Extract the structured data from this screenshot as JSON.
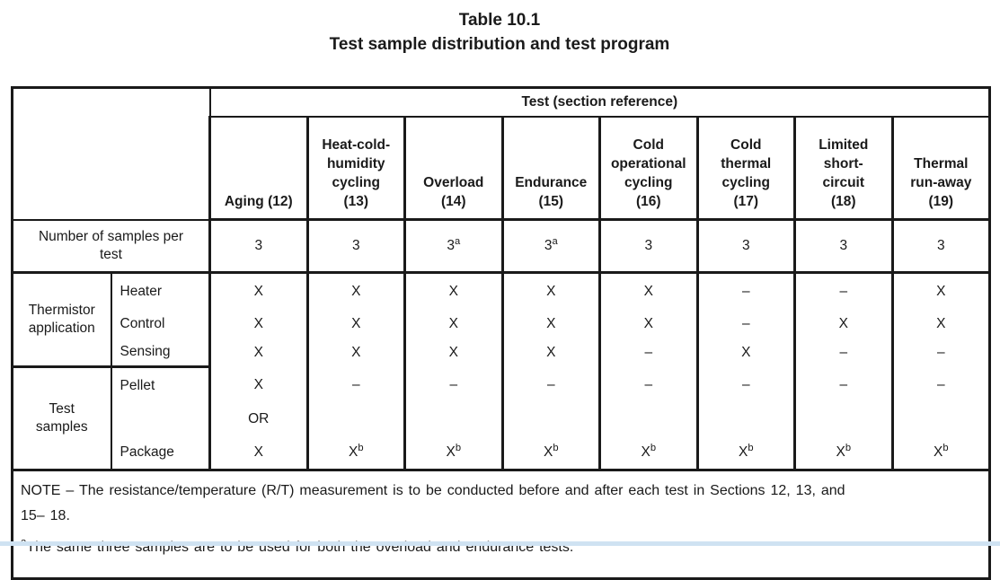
{
  "page": {
    "title": "Table 10.1",
    "subtitle": "Test sample distribution and test program"
  },
  "table": {
    "test_header": "Test (section reference)",
    "columns": [
      "Aging (12)",
      "Heat-cold-\nhumidity\ncycling\n(13)",
      "Overload\n(14)",
      "Endurance\n(15)",
      "Cold\noperational\ncycling\n(16)",
      "Cold\nthermal\ncycling\n(17)",
      "Limited\nshort-\ncircuit\n(18)",
      "Thermal\nrun-away\n(19)"
    ],
    "samples_row": {
      "label": "Number of samples per\ntest",
      "values": [
        "3",
        "3",
        "3^a",
        "3^a",
        "3",
        "3",
        "3",
        "3"
      ]
    },
    "sections": [
      {
        "group": "Thermistor\napplication",
        "rows": [
          {
            "label": "Heater",
            "values": [
              "X",
              "X",
              "X",
              "X",
              "X",
              "–",
              "–",
              "X"
            ]
          },
          {
            "label": "Control",
            "values": [
              "X",
              "X",
              "X",
              "X",
              "X",
              "–",
              "X",
              "X"
            ]
          },
          {
            "label": "Sensing",
            "values": [
              "X",
              "X",
              "X",
              "X",
              "–",
              "X",
              "–",
              "–"
            ]
          }
        ]
      },
      {
        "group": "Test\nsamples",
        "rows": [
          {
            "label": "Pellet",
            "values": [
              "X",
              "–",
              "–",
              "–",
              "–",
              "–",
              "–",
              "–"
            ]
          },
          {
            "label": "",
            "values": [
              "OR",
              "",
              "",
              "",
              "",
              "",
              "",
              ""
            ]
          },
          {
            "label": "Package",
            "values": [
              "X",
              "X^b",
              "X^b",
              "X^b",
              "X^b",
              "X^b",
              "X^b",
              "X^b"
            ]
          }
        ]
      }
    ],
    "note_lines": [
      "NOTE – The resistance/temperature (R/T) measurement is to be conducted before and after each test in Sections 12, 13, and",
      "15– 18."
    ],
    "footnote_a": {
      "marker": "a",
      "text": "The same three samples are to be used for both the overload and endurance tests."
    }
  },
  "colors": {
    "text": "#1a1a1a",
    "border": "#1a1a1a",
    "background": "#ffffff",
    "bottom_strip": "#cfe2f2"
  }
}
